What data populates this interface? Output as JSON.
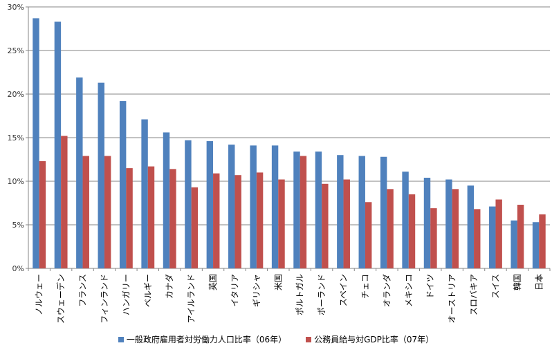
{
  "chart_data": {
    "type": "bar",
    "title": "",
    "xlabel": "",
    "ylabel": "",
    "ylim": [
      0,
      30
    ],
    "yticks": [
      "0%",
      "5%",
      "10%",
      "15%",
      "20%",
      "25%",
      "30%"
    ],
    "grid": true,
    "legend_position": "bottom",
    "categories": [
      "ノルウェー",
      "スウェーデン",
      "フランス",
      "フィンランド",
      "ハンガリー",
      "ベルギー",
      "カナダ",
      "アイルランド",
      "英国",
      "イタリア",
      "ギリシャ",
      "米国",
      "ポルトガル",
      "ポーランド",
      "スペイン",
      "チェコ",
      "オランダ",
      "メキシコ",
      "ドイツ",
      "オーストリア",
      "スロバキア",
      "スイス",
      "韓国",
      "日本"
    ],
    "series": [
      {
        "name": "一般政府雇用者対労働力人口比率（06年）",
        "color": "#4F81BD",
        "values": [
          28.7,
          28.3,
          21.9,
          21.3,
          19.2,
          17.1,
          15.6,
          14.7,
          14.6,
          14.2,
          14.1,
          14.1,
          13.4,
          13.4,
          13.0,
          12.9,
          12.8,
          11.1,
          10.4,
          10.2,
          9.5,
          7.1,
          5.5,
          5.3
        ]
      },
      {
        "name": "公務員給与対GDP比率（07年）",
        "color": "#C0504D",
        "values": [
          12.3,
          15.2,
          12.9,
          12.9,
          11.5,
          11.7,
          11.4,
          9.3,
          10.9,
          10.7,
          11.0,
          10.2,
          12.9,
          9.7,
          10.2,
          7.6,
          9.1,
          8.5,
          6.9,
          9.1,
          6.8,
          7.9,
          7.3,
          6.2
        ]
      }
    ]
  }
}
